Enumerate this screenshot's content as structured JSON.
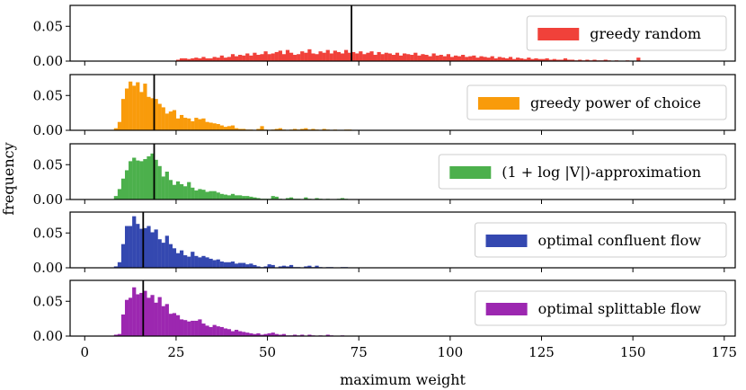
{
  "chart_data": {
    "type": "histogram",
    "layout": "5 vertically stacked panels sharing the x axis",
    "xlabel": "maximum weight",
    "ylabel": "frequency",
    "xlim": [
      -4,
      178
    ],
    "x_ticks": [
      0,
      25,
      50,
      75,
      100,
      125,
      150,
      175
    ],
    "y_ticks": [
      0.0,
      0.05
    ],
    "bin_width": 1,
    "legend_position": "right",
    "panels": [
      {
        "series_name": "greedy random",
        "color": "#f0413a",
        "mean_line": 73,
        "ylim": [
          0,
          0.08
        ],
        "bins_start": 25,
        "frequencies": [
          0.002,
          0.004,
          0.004,
          0.003,
          0.004,
          0.005,
          0.004,
          0.006,
          0.004,
          0.004,
          0.006,
          0.005,
          0.008,
          0.005,
          0.006,
          0.01,
          0.007,
          0.009,
          0.008,
          0.011,
          0.008,
          0.012,
          0.009,
          0.01,
          0.014,
          0.01,
          0.011,
          0.013,
          0.015,
          0.01,
          0.016,
          0.012,
          0.009,
          0.01,
          0.014,
          0.012,
          0.017,
          0.011,
          0.01,
          0.014,
          0.012,
          0.016,
          0.011,
          0.015,
          0.013,
          0.011,
          0.016,
          0.012,
          0.013,
          0.011,
          0.014,
          0.01,
          0.012,
          0.014,
          0.009,
          0.013,
          0.01,
          0.012,
          0.011,
          0.009,
          0.012,
          0.008,
          0.011,
          0.01,
          0.009,
          0.012,
          0.008,
          0.01,
          0.009,
          0.007,
          0.011,
          0.008,
          0.009,
          0.007,
          0.01,
          0.006,
          0.008,
          0.007,
          0.009,
          0.006,
          0.007,
          0.008,
          0.005,
          0.007,
          0.006,
          0.005,
          0.007,
          0.004,
          0.006,
          0.005,
          0.004,
          0.006,
          0.003,
          0.005,
          0.004,
          0.003,
          0.005,
          0.003,
          0.004,
          0.003,
          0.003,
          0.004,
          0.002,
          0.003,
          0.002,
          0.002,
          0.004,
          0.002,
          0.002,
          0.001,
          0.002,
          0.001,
          0.002,
          0.001,
          0.002,
          0.001,
          0.001,
          0.002,
          0.001,
          0.0,
          0.001,
          0.0,
          0.0,
          0.001,
          0.0,
          0.0,
          0.005
        ]
      },
      {
        "series_name": "greedy power of choice",
        "color": "#f99b0b",
        "mean_line": 19,
        "ylim": [
          0,
          0.08
        ],
        "bins_start": 8,
        "frequencies": [
          0.003,
          0.012,
          0.045,
          0.06,
          0.07,
          0.064,
          0.069,
          0.055,
          0.067,
          0.048,
          0.046,
          0.045,
          0.038,
          0.033,
          0.024,
          0.027,
          0.029,
          0.017,
          0.022,
          0.018,
          0.017,
          0.013,
          0.018,
          0.016,
          0.017,
          0.012,
          0.011,
          0.01,
          0.009,
          0.007,
          0.005,
          0.006,
          0.007,
          0.003,
          0.002,
          0.002,
          0.001,
          0.001,
          0.0,
          0.002,
          0.006,
          0.001,
          0.0,
          0.001,
          0.002,
          0.003,
          0.001,
          0.0,
          0.001,
          0.002,
          0.001,
          0.002,
          0.003,
          0.001,
          0.002,
          0.001,
          0.0,
          0.002,
          0.001,
          0.0,
          0.001,
          0.0,
          0.0,
          0.001,
          0.001
        ]
      },
      {
        "series_name": "(1 + log |V|)-approximation",
        "color": "#4cb04c",
        "mean_line": 19,
        "ylim": [
          0,
          0.08
        ],
        "bins_start": 8,
        "frequencies": [
          0.005,
          0.015,
          0.03,
          0.042,
          0.055,
          0.06,
          0.056,
          0.055,
          0.058,
          0.062,
          0.066,
          0.057,
          0.048,
          0.033,
          0.04,
          0.028,
          0.021,
          0.026,
          0.022,
          0.019,
          0.025,
          0.017,
          0.013,
          0.015,
          0.014,
          0.011,
          0.012,
          0.012,
          0.01,
          0.008,
          0.007,
          0.006,
          0.008,
          0.006,
          0.006,
          0.005,
          0.005,
          0.004,
          0.003,
          0.002,
          0.001,
          0.001,
          0.001,
          0.005,
          0.004,
          0.001,
          0.0,
          0.002,
          0.003,
          0.001,
          0.001,
          0.0,
          0.003,
          0.001,
          0.0,
          0.002,
          0.001,
          0.0,
          0.001,
          0.0,
          0.0,
          0.001,
          0.002,
          0.001,
          0.0
        ]
      },
      {
        "series_name": "optimal confluent flow",
        "color": "#3448b0",
        "mean_line": 16,
        "ylim": [
          0,
          0.08
        ],
        "bins_start": 8,
        "frequencies": [
          0.002,
          0.008,
          0.034,
          0.06,
          0.06,
          0.074,
          0.063,
          0.056,
          0.057,
          0.06,
          0.051,
          0.055,
          0.041,
          0.036,
          0.046,
          0.034,
          0.028,
          0.021,
          0.025,
          0.018,
          0.016,
          0.023,
          0.017,
          0.015,
          0.017,
          0.015,
          0.013,
          0.011,
          0.012,
          0.009,
          0.008,
          0.008,
          0.009,
          0.006,
          0.007,
          0.007,
          0.005,
          0.006,
          0.004,
          0.002,
          0.001,
          0.002,
          0.005,
          0.004,
          0.0,
          0.002,
          0.003,
          0.002,
          0.004,
          0.001,
          0.001,
          0.0,
          0.002,
          0.003,
          0.001,
          0.003,
          0.001,
          0.0,
          0.001,
          0.001,
          0.0,
          0.0,
          0.001,
          0.001,
          0.0
        ]
      },
      {
        "series_name": "optimal splittable flow",
        "color": "#9c27b0",
        "mean_line": 16,
        "ylim": [
          0,
          0.08
        ],
        "bins_start": 8,
        "frequencies": [
          0.002,
          0.003,
          0.031,
          0.052,
          0.055,
          0.07,
          0.06,
          0.062,
          0.065,
          0.055,
          0.059,
          0.048,
          0.056,
          0.043,
          0.046,
          0.032,
          0.033,
          0.03,
          0.024,
          0.023,
          0.021,
          0.022,
          0.022,
          0.024,
          0.018,
          0.015,
          0.013,
          0.016,
          0.014,
          0.013,
          0.011,
          0.01,
          0.007,
          0.009,
          0.007,
          0.006,
          0.005,
          0.004,
          0.003,
          0.004,
          0.002,
          0.003,
          0.004,
          0.005,
          0.003,
          0.002,
          0.003,
          0.001,
          0.001,
          0.002,
          0.001,
          0.002,
          0.0,
          0.002,
          0.001,
          0.0,
          0.001,
          0.0,
          0.002,
          0.001,
          0.0,
          0.0,
          0.001,
          0.0,
          0.0
        ]
      }
    ]
  }
}
